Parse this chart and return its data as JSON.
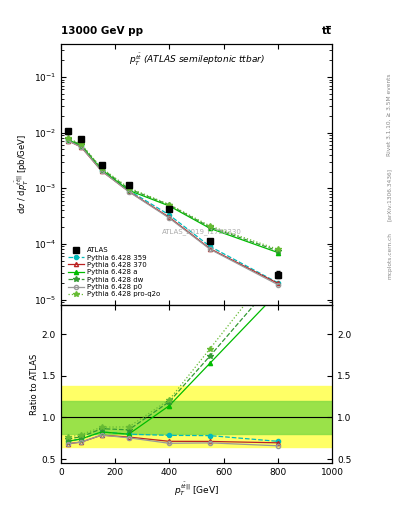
{
  "title_top": "13000 GeV pp",
  "title_right": "tt̅",
  "right_label_1": "Rivet 3.1.10, ≥ 3.5M events",
  "right_label_2": "[arXiv:1306.3436]",
  "right_label_3": "mcplots.cern.ch",
  "watermark": "ATLAS_2019_I1750330",
  "plot_title": "$p_T^{t\\bar{t}}$ (ATLAS semileptonic ttbar)",
  "xlabel": "$p_T^{t\\bar{t}||}$ [GeV]",
  "ylabel_main": "d$\\sigma$ / d$p_T^{t\\bar{t}||}$ [pb/GeV]",
  "ylabel_ratio": "Ratio to ATLAS",
  "x_data": [
    25,
    75,
    150,
    250,
    400,
    550,
    800
  ],
  "atlas_y": [
    0.0105,
    0.0078,
    0.0026,
    0.00115,
    0.00042,
    0.000115,
    2.8e-05
  ],
  "atlas_yerr": [
    0.0012,
    0.0005,
    0.00015,
    7e-05,
    2.5e-05,
    8e-07,
    4e-06
  ],
  "py359_y": [
    0.0075,
    0.0058,
    0.00215,
    0.00092,
    0.00033,
    9e-05,
    2e-05
  ],
  "py370_y": [
    0.0072,
    0.0055,
    0.00205,
    0.00088,
    0.0003,
    8.2e-05,
    1.95e-05
  ],
  "pya_y": [
    0.0075,
    0.0058,
    0.00215,
    0.00092,
    0.00048,
    0.00019,
    7e-05
  ],
  "pydw_y": [
    0.0078,
    0.006,
    0.00225,
    0.00098,
    0.0005,
    0.0002,
    7.5e-05
  ],
  "pyp0_y": [
    0.0072,
    0.0055,
    0.00205,
    0.00087,
    0.00029,
    8e-05,
    1.85e-05
  ],
  "pyproq2o_y": [
    0.008,
    0.0062,
    0.0023,
    0.00102,
    0.00051,
    0.00021,
    8e-05
  ],
  "py359_color": "#00BBBB",
  "py370_color": "#BB2222",
  "pya_color": "#00BB00",
  "pydw_color": "#339933",
  "pyp0_color": "#999999",
  "pyproq2o_color": "#66BB33",
  "atlas_color": "#000000",
  "yellow_band": [
    0.65,
    1.38
  ],
  "green_band": [
    0.8,
    1.2
  ],
  "ratio_ylim": [
    0.45,
    2.35
  ],
  "ratio_yticks": [
    0.5,
    1.0,
    1.5,
    2.0
  ],
  "main_ylim_lo": 8e-06,
  "main_ylim_hi": 0.4,
  "xlim": [
    0,
    1000
  ]
}
